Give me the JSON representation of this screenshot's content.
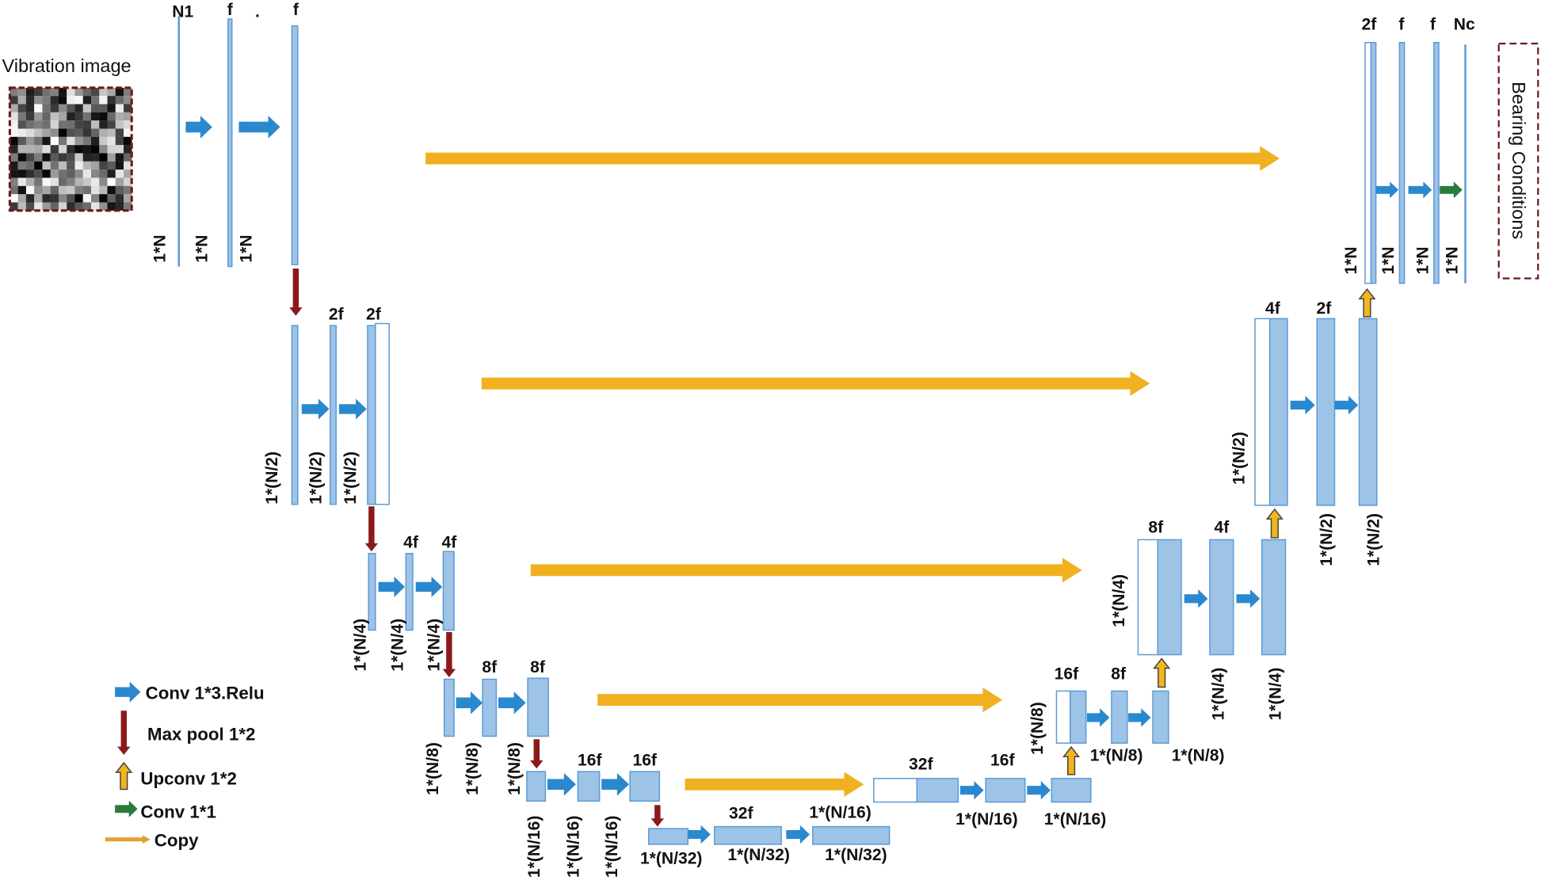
{
  "input": {
    "title": "Vibration image"
  },
  "output": {
    "title": "Bearing Conditions"
  },
  "colors": {
    "conv": "#2a88cf",
    "maxpool": "#8b1a1a",
    "upconv": "#f2b51c",
    "conv1x1": "#2a7a3a",
    "copy": "#f0b020",
    "block": "#9dc3e6",
    "block_edge": "#5b9bd5",
    "frame": "#6b1a1a"
  },
  "encoder": {
    "level1": {
      "channels": [
        "N1",
        "f",
        ".",
        "f"
      ],
      "sizes": [
        "1*N",
        "1*N",
        "1*N"
      ]
    },
    "level2": {
      "channels": [
        "2f",
        "2f"
      ],
      "sizes": [
        "1*(N/2)",
        "1*(N/2)",
        "1*(N/2)"
      ]
    },
    "level3": {
      "channels": [
        "4f",
        "4f"
      ],
      "sizes": [
        "1*(N/4)",
        "1*(N/4)",
        "1*(N/4)"
      ]
    },
    "level4": {
      "channels": [
        "8f",
        "8f"
      ],
      "sizes": [
        "1*(N/8)",
        "1*(N/8)",
        "1*(N/8)"
      ]
    },
    "level5": {
      "channels": [
        "16f",
        "16f"
      ],
      "sizes": [
        "1*(N/16)",
        "1*(N/16)",
        "1*(N/16)"
      ]
    }
  },
  "bottleneck": {
    "channels": [
      "32f",
      "1*(N/16)"
    ],
    "sizes": [
      "1*(N/32)",
      "1*(N/32)",
      "1*(N/32)"
    ]
  },
  "decoder": {
    "level5": {
      "channels": [
        "32f",
        "16f"
      ],
      "sizes": [
        "1*(N/16)",
        "1*(N/16)",
        "1*(N/8)"
      ]
    },
    "level4": {
      "channels": [
        "16f",
        "8f"
      ],
      "sizes": [
        "1*(N/8)",
        "1*(N/8)"
      ]
    },
    "level3": {
      "channels": [
        "8f",
        "4f"
      ],
      "sizes": [
        "1*(N/4)",
        "1*(N/4)",
        "1*(N/4)"
      ]
    },
    "level2": {
      "channels": [
        "4f",
        "2f"
      ],
      "sizes": [
        "1*(N/2)",
        "1*(N/2)",
        "1*(N/2)"
      ]
    },
    "level1": {
      "channels": [
        "2f",
        "f",
        "f",
        "Nc"
      ],
      "sizes": [
        "1*N",
        "1*N",
        "1*N",
        "1*N"
      ]
    }
  },
  "legend": {
    "items": [
      {
        "label": "Conv 1*3.Relu",
        "icon": "blue-right-arrow"
      },
      {
        "label": "Max pool 1*2",
        "icon": "red-down-arrow"
      },
      {
        "label": "Upconv 1*2",
        "icon": "yellow-up-arrow"
      },
      {
        "label": "Conv 1*1",
        "icon": "green-right-arrow"
      },
      {
        "label": "Copy",
        "icon": "orange-long-arrow"
      }
    ]
  }
}
